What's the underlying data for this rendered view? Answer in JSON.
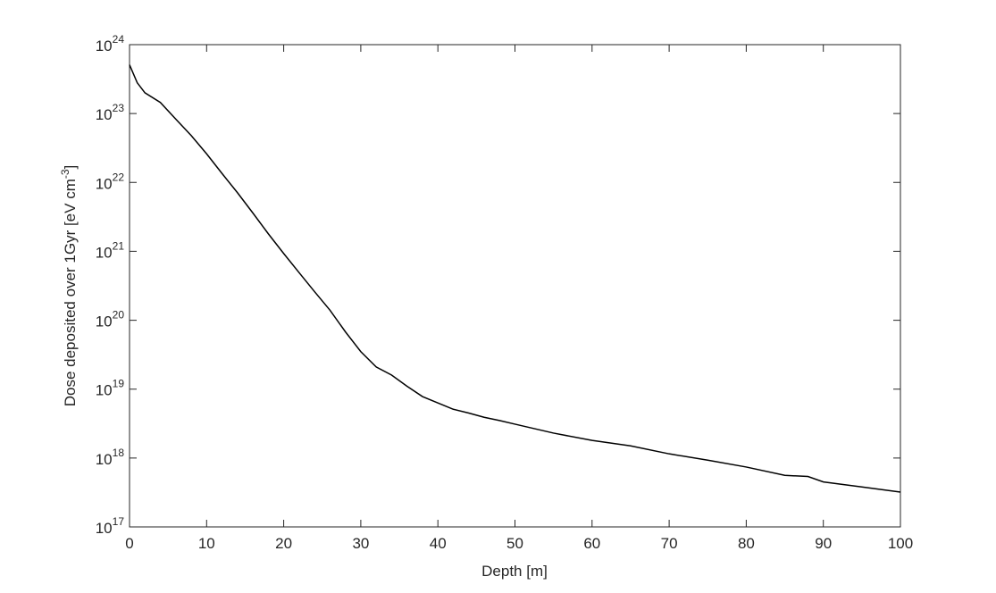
{
  "chart_data": {
    "type": "line",
    "xlabel": "Depth [m]",
    "ylabel": {
      "text": "Dose deposited over 1Gyr [eV cm",
      "superscript": "-3",
      "suffix": "]"
    },
    "x": [
      0,
      1,
      2,
      4,
      6,
      8,
      10,
      12,
      14,
      16,
      18,
      20,
      22,
      24,
      26,
      28,
      30,
      32,
      34,
      36,
      38,
      40,
      42,
      44,
      46,
      48,
      50,
      55,
      60,
      65,
      70,
      75,
      80,
      85,
      88,
      90,
      95,
      100
    ],
    "series": [
      {
        "color": "#000000",
        "values": [
          5.1e+23,
          2.8e+23,
          2e+23,
          1.45e+23,
          8.3e+22,
          4.8e+22,
          2.6e+22,
          1.35e+22,
          7.1e+21,
          3.6e+21,
          1.8e+21,
          9.3e+20,
          4.9e+20,
          2.6e+20,
          1.4e+20,
          6.8e+19,
          3.5e+19,
          2.1e+19,
          1.6e+19,
          1.1e+19,
          7.8e+18,
          6.3e+18,
          5.1e+18,
          4.5e+18,
          3.9e+18,
          3.5e+18,
          3.1e+18,
          2.3e+18,
          1.8e+18,
          1.5e+18,
          1.15e+18,
          9.3e+17,
          7.4e+17,
          5.6e+17,
          5.4e+17,
          4.5e+17,
          3.8e+17,
          3.2e+17
        ]
      }
    ],
    "xlim": [
      0,
      100
    ],
    "xticks": [
      0,
      10,
      20,
      30,
      40,
      50,
      60,
      70,
      80,
      90,
      100
    ],
    "ylim": [
      1e+17,
      1e+24
    ],
    "yscale": "log",
    "yticks": [
      {
        "value": 1e+17,
        "label": "10",
        "exponent": "17"
      },
      {
        "value": 1e+18,
        "label": "10",
        "exponent": "18"
      },
      {
        "value": 1e+19,
        "label": "10",
        "exponent": "19"
      },
      {
        "value": 1e+20,
        "label": "10",
        "exponent": "20"
      },
      {
        "value": 1e+21,
        "label": "10",
        "exponent": "21"
      },
      {
        "value": 1e+22,
        "label": "10",
        "exponent": "22"
      },
      {
        "value": 1e+23,
        "label": "10",
        "exponent": "23"
      },
      {
        "value": 1e+24,
        "label": "10",
        "exponent": "24"
      }
    ],
    "grid": false
  }
}
